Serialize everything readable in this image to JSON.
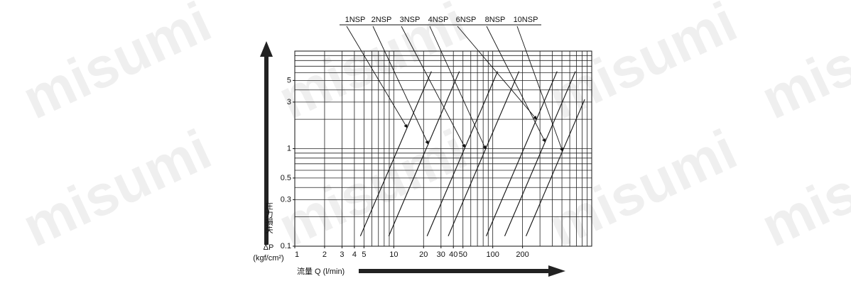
{
  "chart_data": {
    "type": "line",
    "watermark": "misumi",
    "ylabel": [
      "圧力損失",
      "ΔP",
      "(kgf/cm²)"
    ],
    "xlabel": "流量 Q (l/min)",
    "xscale": "log",
    "yscale": "log",
    "xlim": [
      1,
      1000
    ],
    "ylim": [
      0.1,
      10
    ],
    "xticks": [
      1,
      2,
      3,
      4,
      5,
      10,
      20,
      30,
      40,
      50,
      100,
      200
    ],
    "yticks": [
      0.1,
      0.3,
      0.5,
      1,
      3,
      5
    ],
    "xgrid": [
      1,
      2,
      3,
      4,
      5,
      6,
      7,
      8,
      9,
      10,
      20,
      30,
      40,
      50,
      60,
      70,
      80,
      90,
      100,
      200,
      300,
      400,
      500,
      600,
      700,
      800,
      900,
      1000
    ],
    "ygrid": [
      0.1,
      0.2,
      0.3,
      0.4,
      0.5,
      0.6,
      0.7,
      0.8,
      0.9,
      1,
      2,
      3,
      4,
      5,
      6,
      7,
      8,
      9,
      10
    ],
    "series": [
      {
        "name": "1NSP",
        "color": "#111111",
        "x": [
          4.6,
          24
        ],
        "values": [
          0.127,
          6.2
        ]
      },
      {
        "name": "2NSP",
        "color": "#111111",
        "x": [
          8.9,
          46
        ],
        "values": [
          0.127,
          6.2
        ]
      },
      {
        "name": "3NSP",
        "color": "#111111",
        "x": [
          21.7,
          112
        ],
        "values": [
          0.127,
          6.2
        ]
      },
      {
        "name": "4NSP",
        "color": "#111111",
        "x": [
          35.5,
          184
        ],
        "values": [
          0.127,
          6.2
        ]
      },
      {
        "name": "6NSP",
        "color": "#111111",
        "x": [
          86,
          447
        ],
        "values": [
          0.127,
          6.2
        ]
      },
      {
        "name": "8NSP",
        "color": "#111111",
        "x": [
          132,
          685
        ],
        "values": [
          0.127,
          6.2
        ]
      },
      {
        "name": "10NSP",
        "color": "#111111",
        "x": [
          217,
          849
        ],
        "values": [
          0.127,
          3.2
        ]
      }
    ]
  }
}
